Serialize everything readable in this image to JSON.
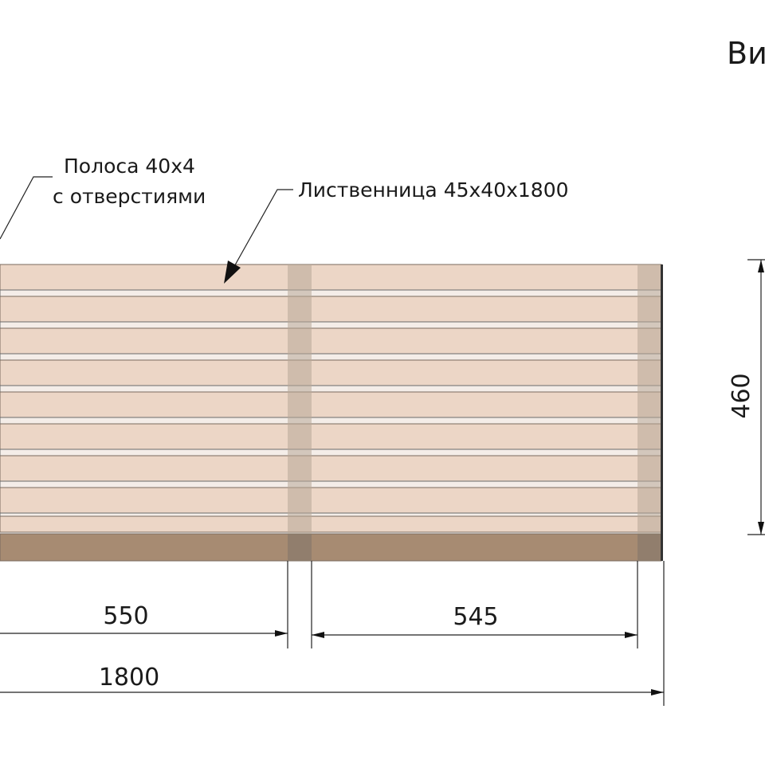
{
  "view_title": "Ви",
  "callouts": {
    "strip_line1": "Полоса 40х4",
    "strip_line2": "с отверстиями",
    "larch": "Лиственница 45х40х1800"
  },
  "dimensions": {
    "height": "460",
    "left_span": "550",
    "right_span": "545",
    "total_length": "1800"
  },
  "colors": {
    "slat": "#ecd6c6",
    "base_board": "#a78b72",
    "metal_strip": "#b8a898"
  }
}
